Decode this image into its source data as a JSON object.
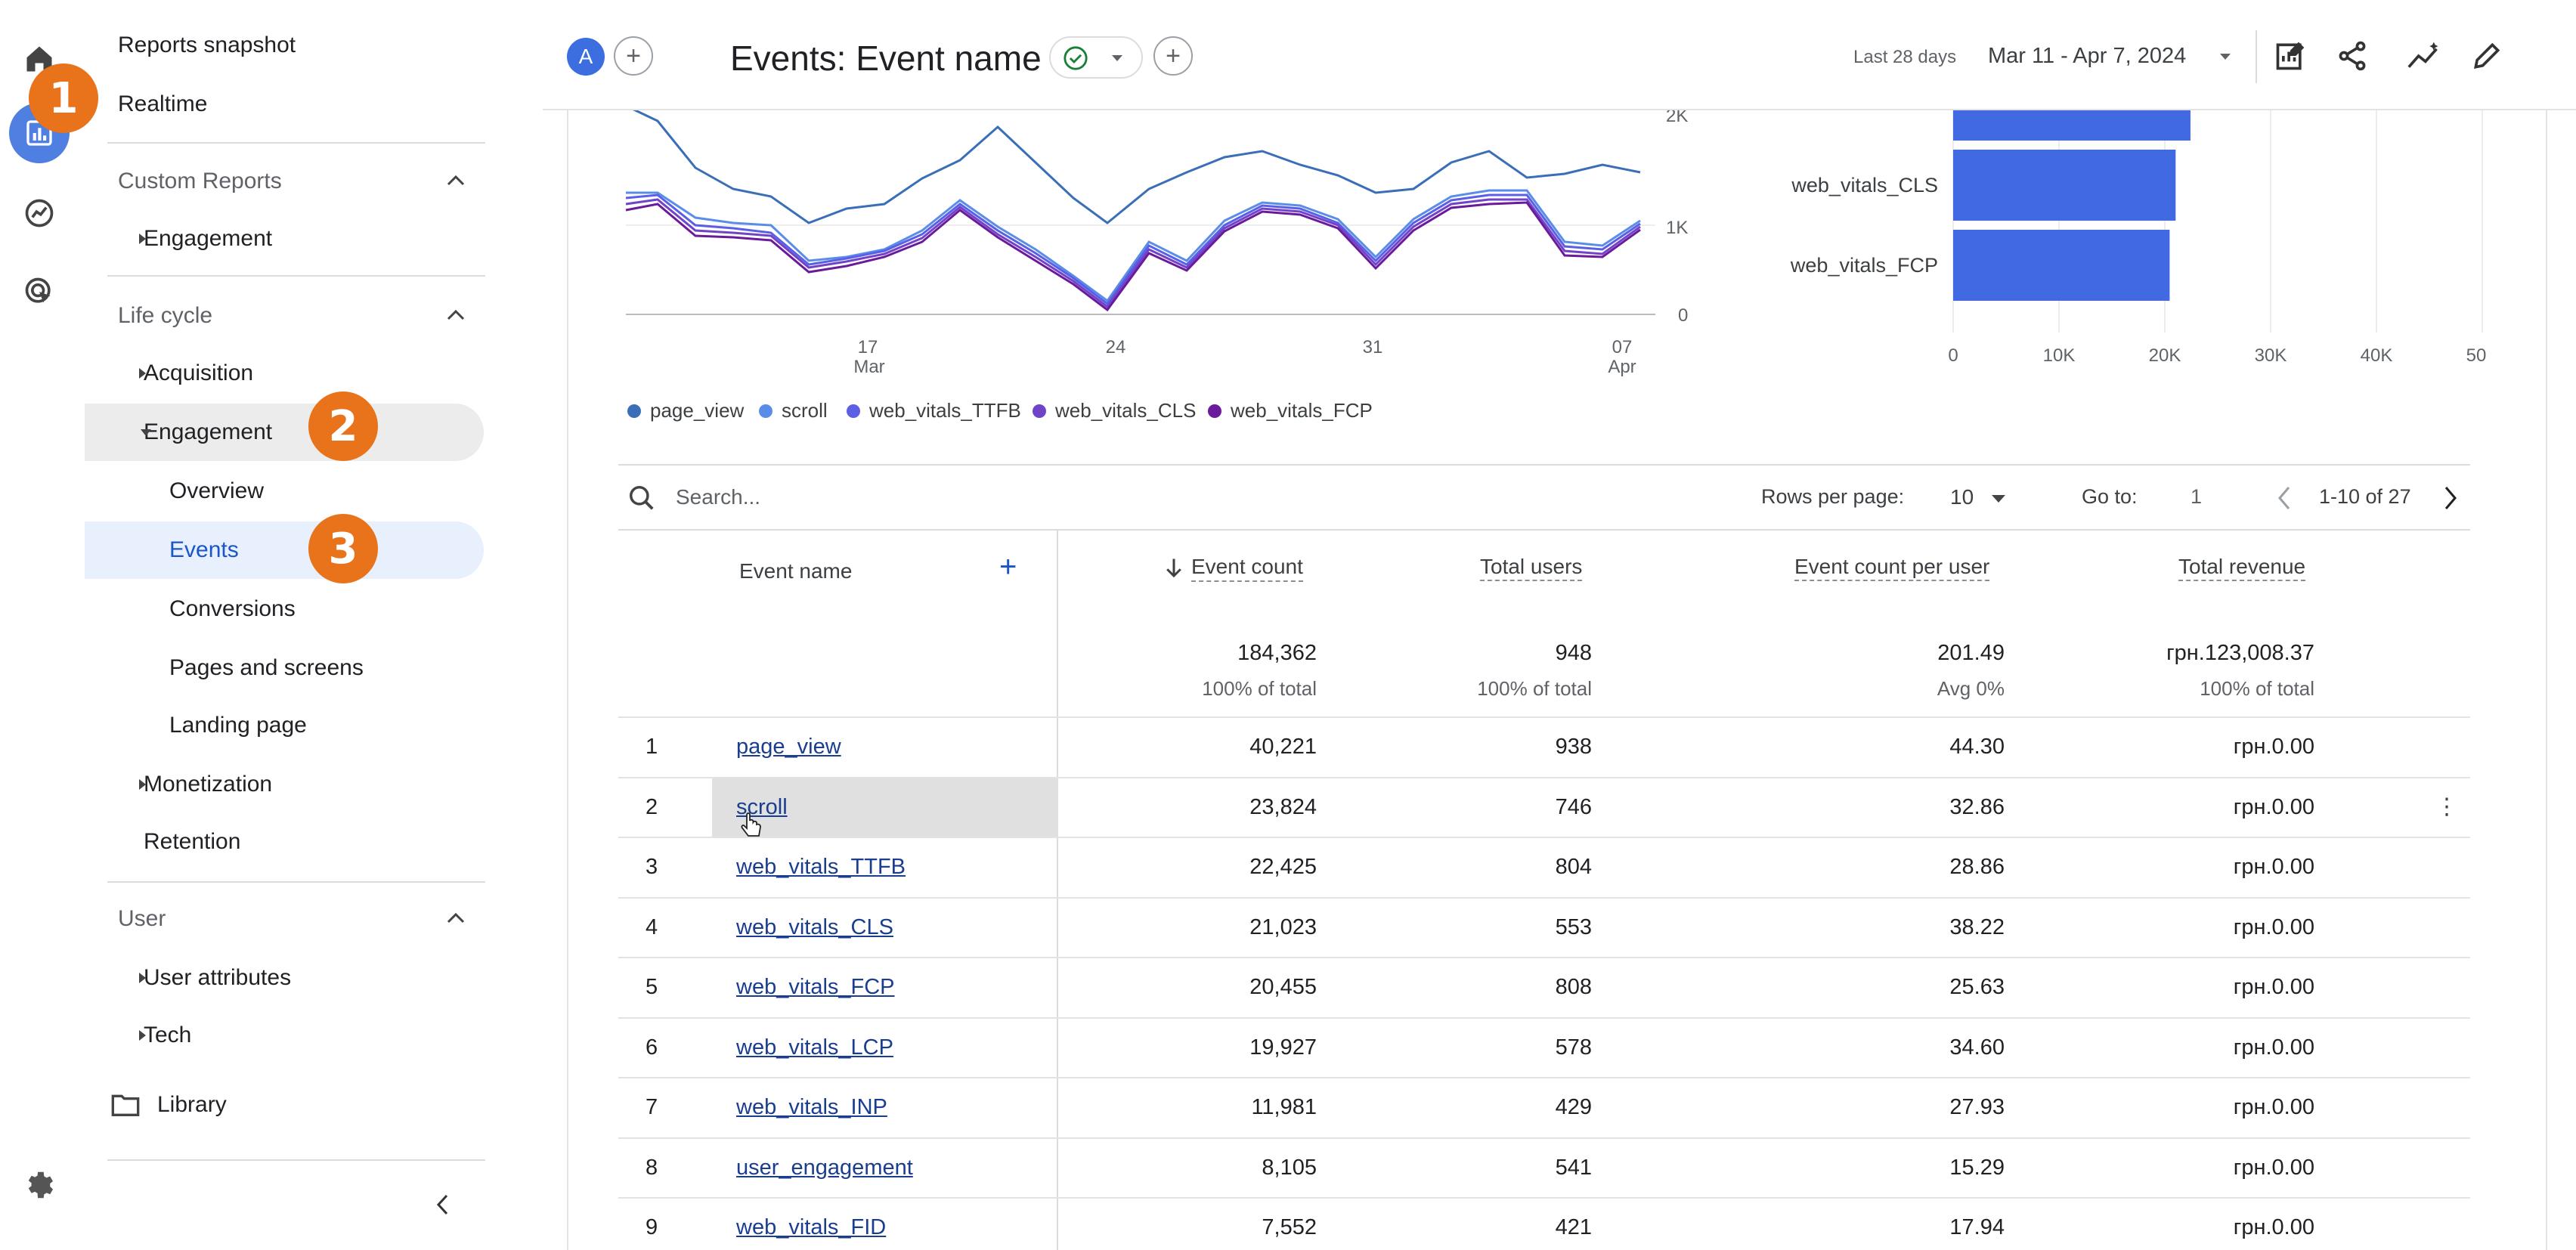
{
  "sidebar": {
    "reports_snapshot": "Reports snapshot",
    "realtime": "Realtime",
    "custom_reports": "Custom Reports",
    "custom_engagement": "Engagement",
    "life_cycle": "Life cycle",
    "acquisition": "Acquisition",
    "engagement": "Engagement",
    "overview": "Overview",
    "events": "Events",
    "conversions": "Conversions",
    "pages_and_screens": "Pages and screens",
    "landing_page": "Landing page",
    "monetization": "Monetization",
    "retention": "Retention",
    "user": "User",
    "user_attributes": "User attributes",
    "tech": "Tech",
    "library": "Library"
  },
  "badges": {
    "b1": "1",
    "b2": "2",
    "b3": "3"
  },
  "header": {
    "avatar": "A",
    "title": "Events: Event name",
    "date_label": "Last 28 days",
    "date_range": "Mar 11 - Apr 7, 2024"
  },
  "line_chart": {
    "y_ticks": [
      "2K",
      "1K",
      "0"
    ],
    "x_ticks": [
      {
        "day": "17",
        "month": "Mar"
      },
      {
        "day": "24",
        "month": ""
      },
      {
        "day": "31",
        "month": ""
      },
      {
        "day": "07",
        "month": "Apr"
      }
    ],
    "legend": [
      {
        "name": "page_view",
        "color": "#3a6fb8"
      },
      {
        "name": "scroll",
        "color": "#5a8de8"
      },
      {
        "name": "web_vitals_TTFB",
        "color": "#5b5fe6"
      },
      {
        "name": "web_vitals_CLS",
        "color": "#7043c8"
      },
      {
        "name": "web_vitals_FCP",
        "color": "#6a1a9a"
      }
    ]
  },
  "chart_data": {
    "type": "bar",
    "categories": [
      "web_vitals_CLS",
      "web_vitals_FCP"
    ],
    "values": [
      21023,
      20455
    ],
    "x_ticks": [
      "0",
      "10K",
      "20K",
      "30K",
      "40K",
      "50K"
    ],
    "xlim": [
      0,
      50000
    ],
    "bar_color": "#4169e1"
  },
  "controls": {
    "search_placeholder": "Search...",
    "rows_per_page_label": "Rows per page:",
    "rows_per_page_value": "10",
    "goto_label": "Go to:",
    "goto_value": "1",
    "page_range": "1-10 of 27"
  },
  "table": {
    "columns": {
      "event_name": "Event name",
      "event_count": "Event count",
      "total_users": "Total users",
      "per_user": "Event count per user",
      "revenue": "Total revenue"
    },
    "totals": {
      "event_count": "184,362",
      "event_count_sub": "100% of total",
      "total_users": "948",
      "total_users_sub": "100% of total",
      "per_user": "201.49",
      "per_user_sub": "Avg 0%",
      "revenue": "грн.123,008.37",
      "revenue_sub": "100% of total"
    },
    "rows": [
      {
        "n": "1",
        "name": "page_view",
        "count": "40,221",
        "users": "938",
        "per": "44.30",
        "rev": "грн.0.00"
      },
      {
        "n": "2",
        "name": "scroll",
        "count": "23,824",
        "users": "746",
        "per": "32.86",
        "rev": "грн.0.00"
      },
      {
        "n": "3",
        "name": "web_vitals_TTFB",
        "count": "22,425",
        "users": "804",
        "per": "28.86",
        "rev": "грн.0.00"
      },
      {
        "n": "4",
        "name": "web_vitals_CLS",
        "count": "21,023",
        "users": "553",
        "per": "38.22",
        "rev": "грн.0.00"
      },
      {
        "n": "5",
        "name": "web_vitals_FCP",
        "count": "20,455",
        "users": "808",
        "per": "25.63",
        "rev": "грн.0.00"
      },
      {
        "n": "6",
        "name": "web_vitals_LCP",
        "count": "19,927",
        "users": "578",
        "per": "34.60",
        "rev": "грн.0.00"
      },
      {
        "n": "7",
        "name": "web_vitals_INP",
        "count": "11,981",
        "users": "429",
        "per": "27.93",
        "rev": "грн.0.00"
      },
      {
        "n": "8",
        "name": "user_engagement",
        "count": "8,105",
        "users": "541",
        "per": "15.29",
        "rev": "грн.0.00"
      },
      {
        "n": "9",
        "name": "web_vitals_FID",
        "count": "7,552",
        "users": "421",
        "per": "17.94",
        "rev": "грн.0.00"
      }
    ]
  }
}
